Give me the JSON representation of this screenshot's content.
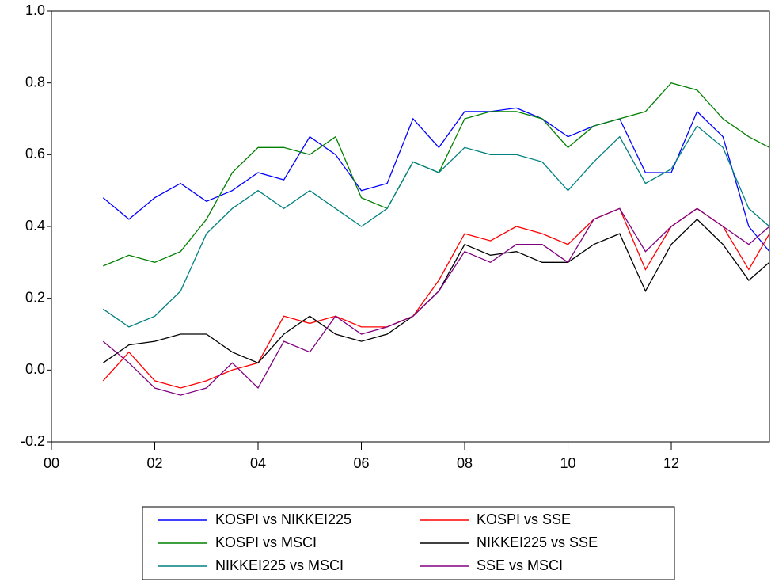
{
  "chart_data": {
    "type": "line",
    "x": [
      2001,
      2001.5,
      2002,
      2002.5,
      2003,
      2003.5,
      2004,
      2004.5,
      2005,
      2005.5,
      2006,
      2006.5,
      2007,
      2007.5,
      2008,
      2008.5,
      2009,
      2009.5,
      2010,
      2010.5,
      2011,
      2011.5,
      2012,
      2012.5,
      2013,
      2013.5,
      2013.9
    ],
    "series": [
      {
        "name": "KOSPI vs NIKKEI225",
        "color": "#0000ff",
        "values": [
          0.48,
          0.42,
          0.48,
          0.52,
          0.47,
          0.5,
          0.55,
          0.53,
          0.65,
          0.6,
          0.5,
          0.52,
          0.7,
          0.62,
          0.72,
          0.72,
          0.73,
          0.7,
          0.65,
          0.68,
          0.7,
          0.55,
          0.55,
          0.72,
          0.65,
          0.4,
          0.33
        ]
      },
      {
        "name": "KOSPI vs SSE",
        "color": "#ff0000",
        "values": [
          -0.03,
          0.05,
          -0.03,
          -0.05,
          -0.03,
          0.0,
          0.02,
          0.15,
          0.13,
          0.15,
          0.12,
          0.12,
          0.15,
          0.25,
          0.38,
          0.36,
          0.4,
          0.38,
          0.35,
          0.42,
          0.45,
          0.28,
          0.4,
          0.45,
          0.4,
          0.28,
          0.38
        ]
      },
      {
        "name": "KOSPI vs MSCI",
        "color": "#008000",
        "values": [
          0.29,
          0.32,
          0.3,
          0.33,
          0.42,
          0.55,
          0.62,
          0.62,
          0.6,
          0.65,
          0.48,
          0.45,
          0.58,
          0.55,
          0.7,
          0.72,
          0.72,
          0.7,
          0.62,
          0.68,
          0.7,
          0.72,
          0.8,
          0.78,
          0.7,
          0.65,
          0.62
        ]
      },
      {
        "name": "NIKKEI225 vs SSE",
        "color": "#000000",
        "values": [
          0.02,
          0.07,
          0.08,
          0.1,
          0.1,
          0.05,
          0.02,
          0.1,
          0.15,
          0.1,
          0.08,
          0.1,
          0.15,
          0.22,
          0.35,
          0.32,
          0.33,
          0.3,
          0.3,
          0.35,
          0.38,
          0.22,
          0.35,
          0.42,
          0.35,
          0.25,
          0.3
        ]
      },
      {
        "name": "NIKKEI225 vs MSCI",
        "color": "#008080",
        "values": [
          0.17,
          0.12,
          0.15,
          0.22,
          0.38,
          0.45,
          0.5,
          0.45,
          0.5,
          0.45,
          0.4,
          0.45,
          0.58,
          0.55,
          0.62,
          0.6,
          0.6,
          0.58,
          0.5,
          0.58,
          0.65,
          0.52,
          0.56,
          0.68,
          0.62,
          0.45,
          0.4
        ]
      },
      {
        "name": "SSE vs MSCI",
        "color": "#800080",
        "values": [
          0.08,
          0.02,
          -0.05,
          -0.07,
          -0.05,
          0.02,
          -0.05,
          0.08,
          0.05,
          0.15,
          0.1,
          0.12,
          0.15,
          0.22,
          0.33,
          0.3,
          0.35,
          0.35,
          0.3,
          0.42,
          0.45,
          0.33,
          0.4,
          0.45,
          0.4,
          0.35,
          0.4
        ]
      }
    ],
    "xlim": [
      2000,
      2013.9
    ],
    "xticks": [
      {
        "value": 2000,
        "label": "00"
      },
      {
        "value": 2002,
        "label": "02"
      },
      {
        "value": 2004,
        "label": "04"
      },
      {
        "value": 2006,
        "label": "06"
      },
      {
        "value": 2008,
        "label": "08"
      },
      {
        "value": 2010,
        "label": "10"
      },
      {
        "value": 2012,
        "label": "12"
      }
    ],
    "ylim": [
      -0.2,
      1.0
    ],
    "yticks": [
      -0.2,
      {
        "value": 0,
        "label": "0.0"
      },
      0.2,
      0.4,
      0.6,
      0.8,
      {
        "value": 1,
        "label": "1.0"
      }
    ],
    "grid": false
  }
}
